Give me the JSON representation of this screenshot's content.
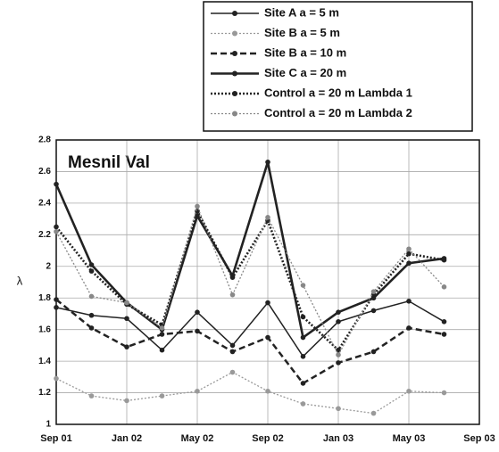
{
  "chart_data": {
    "type": "line",
    "title": "Mesnil Val",
    "ylabel": "λ",
    "x": [
      "2001-09",
      "2001-11",
      "2002-01",
      "2002-03",
      "2002-05",
      "2002-07",
      "2002-09",
      "2002-11",
      "2003-01",
      "2003-03",
      "2003-05",
      "2003-07"
    ],
    "xlim": [
      "2001-09",
      "2003-09"
    ],
    "xticks": [
      {
        "value": "2001-09",
        "label": "Sep 01"
      },
      {
        "value": "2002-01",
        "label": "Jan 02"
      },
      {
        "value": "2002-05",
        "label": "May 02"
      },
      {
        "value": "2002-09",
        "label": "Sep 02"
      },
      {
        "value": "2003-01",
        "label": "Jan 03"
      },
      {
        "value": "2003-05",
        "label": "May 03"
      },
      {
        "value": "2003-09",
        "label": "Sep 03"
      }
    ],
    "ylim": [
      1,
      2.8
    ],
    "yticks": [
      1,
      1.2,
      1.4,
      1.6,
      1.8,
      2,
      2.2,
      2.4,
      2.6,
      2.8
    ],
    "grid": true,
    "legend": "top",
    "series": [
      {
        "name": "Site A a = 5 m",
        "color": "#222222",
        "line_style": "solid-thin",
        "values": [
          1.74,
          1.69,
          1.67,
          1.47,
          1.71,
          1.5,
          1.77,
          1.43,
          1.65,
          1.72,
          1.78,
          1.65
        ]
      },
      {
        "name": "Site B a = 5 m",
        "color": "#999999",
        "line_style": "dotted-thin",
        "values": [
          1.29,
          1.18,
          1.15,
          1.18,
          1.21,
          1.33,
          1.21,
          1.13,
          1.1,
          1.07,
          1.21,
          1.2
        ]
      },
      {
        "name": "Site B a = 10 m",
        "color": "#222222",
        "line_style": "dashed",
        "values": [
          1.79,
          1.61,
          1.49,
          1.57,
          1.59,
          1.46,
          1.55,
          1.26,
          1.39,
          1.46,
          1.61,
          1.57
        ]
      },
      {
        "name": "Site C a = 20 m",
        "color": "#222222",
        "line_style": "solid",
        "values": [
          2.52,
          2.01,
          1.77,
          1.6,
          2.32,
          1.94,
          2.66,
          1.55,
          1.71,
          1.8,
          2.02,
          2.05
        ]
      },
      {
        "name": "Control a = 20 m Lambda 1",
        "color": "#222222",
        "line_style": "dotted",
        "values": [
          2.25,
          1.97,
          1.76,
          1.63,
          2.35,
          1.93,
          2.29,
          1.68,
          1.47,
          1.82,
          2.08,
          2.04
        ]
      },
      {
        "name": "Control a = 20 m Lambda 2",
        "color": "#888888",
        "line_style": "dotted-thin",
        "values": [
          2.22,
          1.81,
          1.77,
          1.61,
          2.38,
          1.82,
          2.31,
          1.88,
          1.44,
          1.84,
          2.11,
          1.87
        ]
      }
    ]
  }
}
